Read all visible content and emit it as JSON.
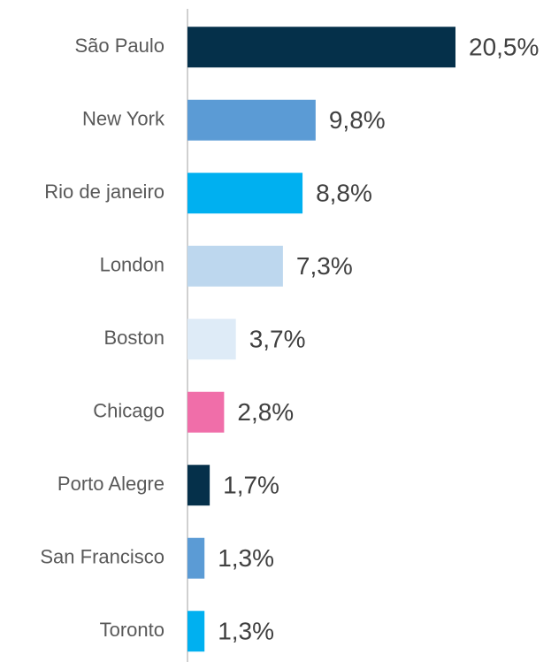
{
  "chart_data": {
    "type": "bar",
    "orientation": "horizontal",
    "categories": [
      "São Paulo",
      "New York",
      "Rio de janeiro",
      "London",
      "Boston",
      "Chicago",
      "Porto Alegre",
      "San Francisco",
      "Toronto"
    ],
    "values": [
      20.5,
      9.8,
      8.8,
      7.3,
      3.7,
      2.8,
      1.7,
      1.3,
      1.3
    ],
    "value_labels": [
      "20,5%",
      "9,8%",
      "8,8%",
      "7,3%",
      "3,7%",
      "2,8%",
      "1,7%",
      "1,3%",
      "1,3%"
    ],
    "colors": [
      "#05304a",
      "#5b9bd5",
      "#00b0f0",
      "#bdd7ee",
      "#deebf7",
      "#f06ea9",
      "#05304a",
      "#5b9bd5",
      "#00b0f0"
    ]
  }
}
